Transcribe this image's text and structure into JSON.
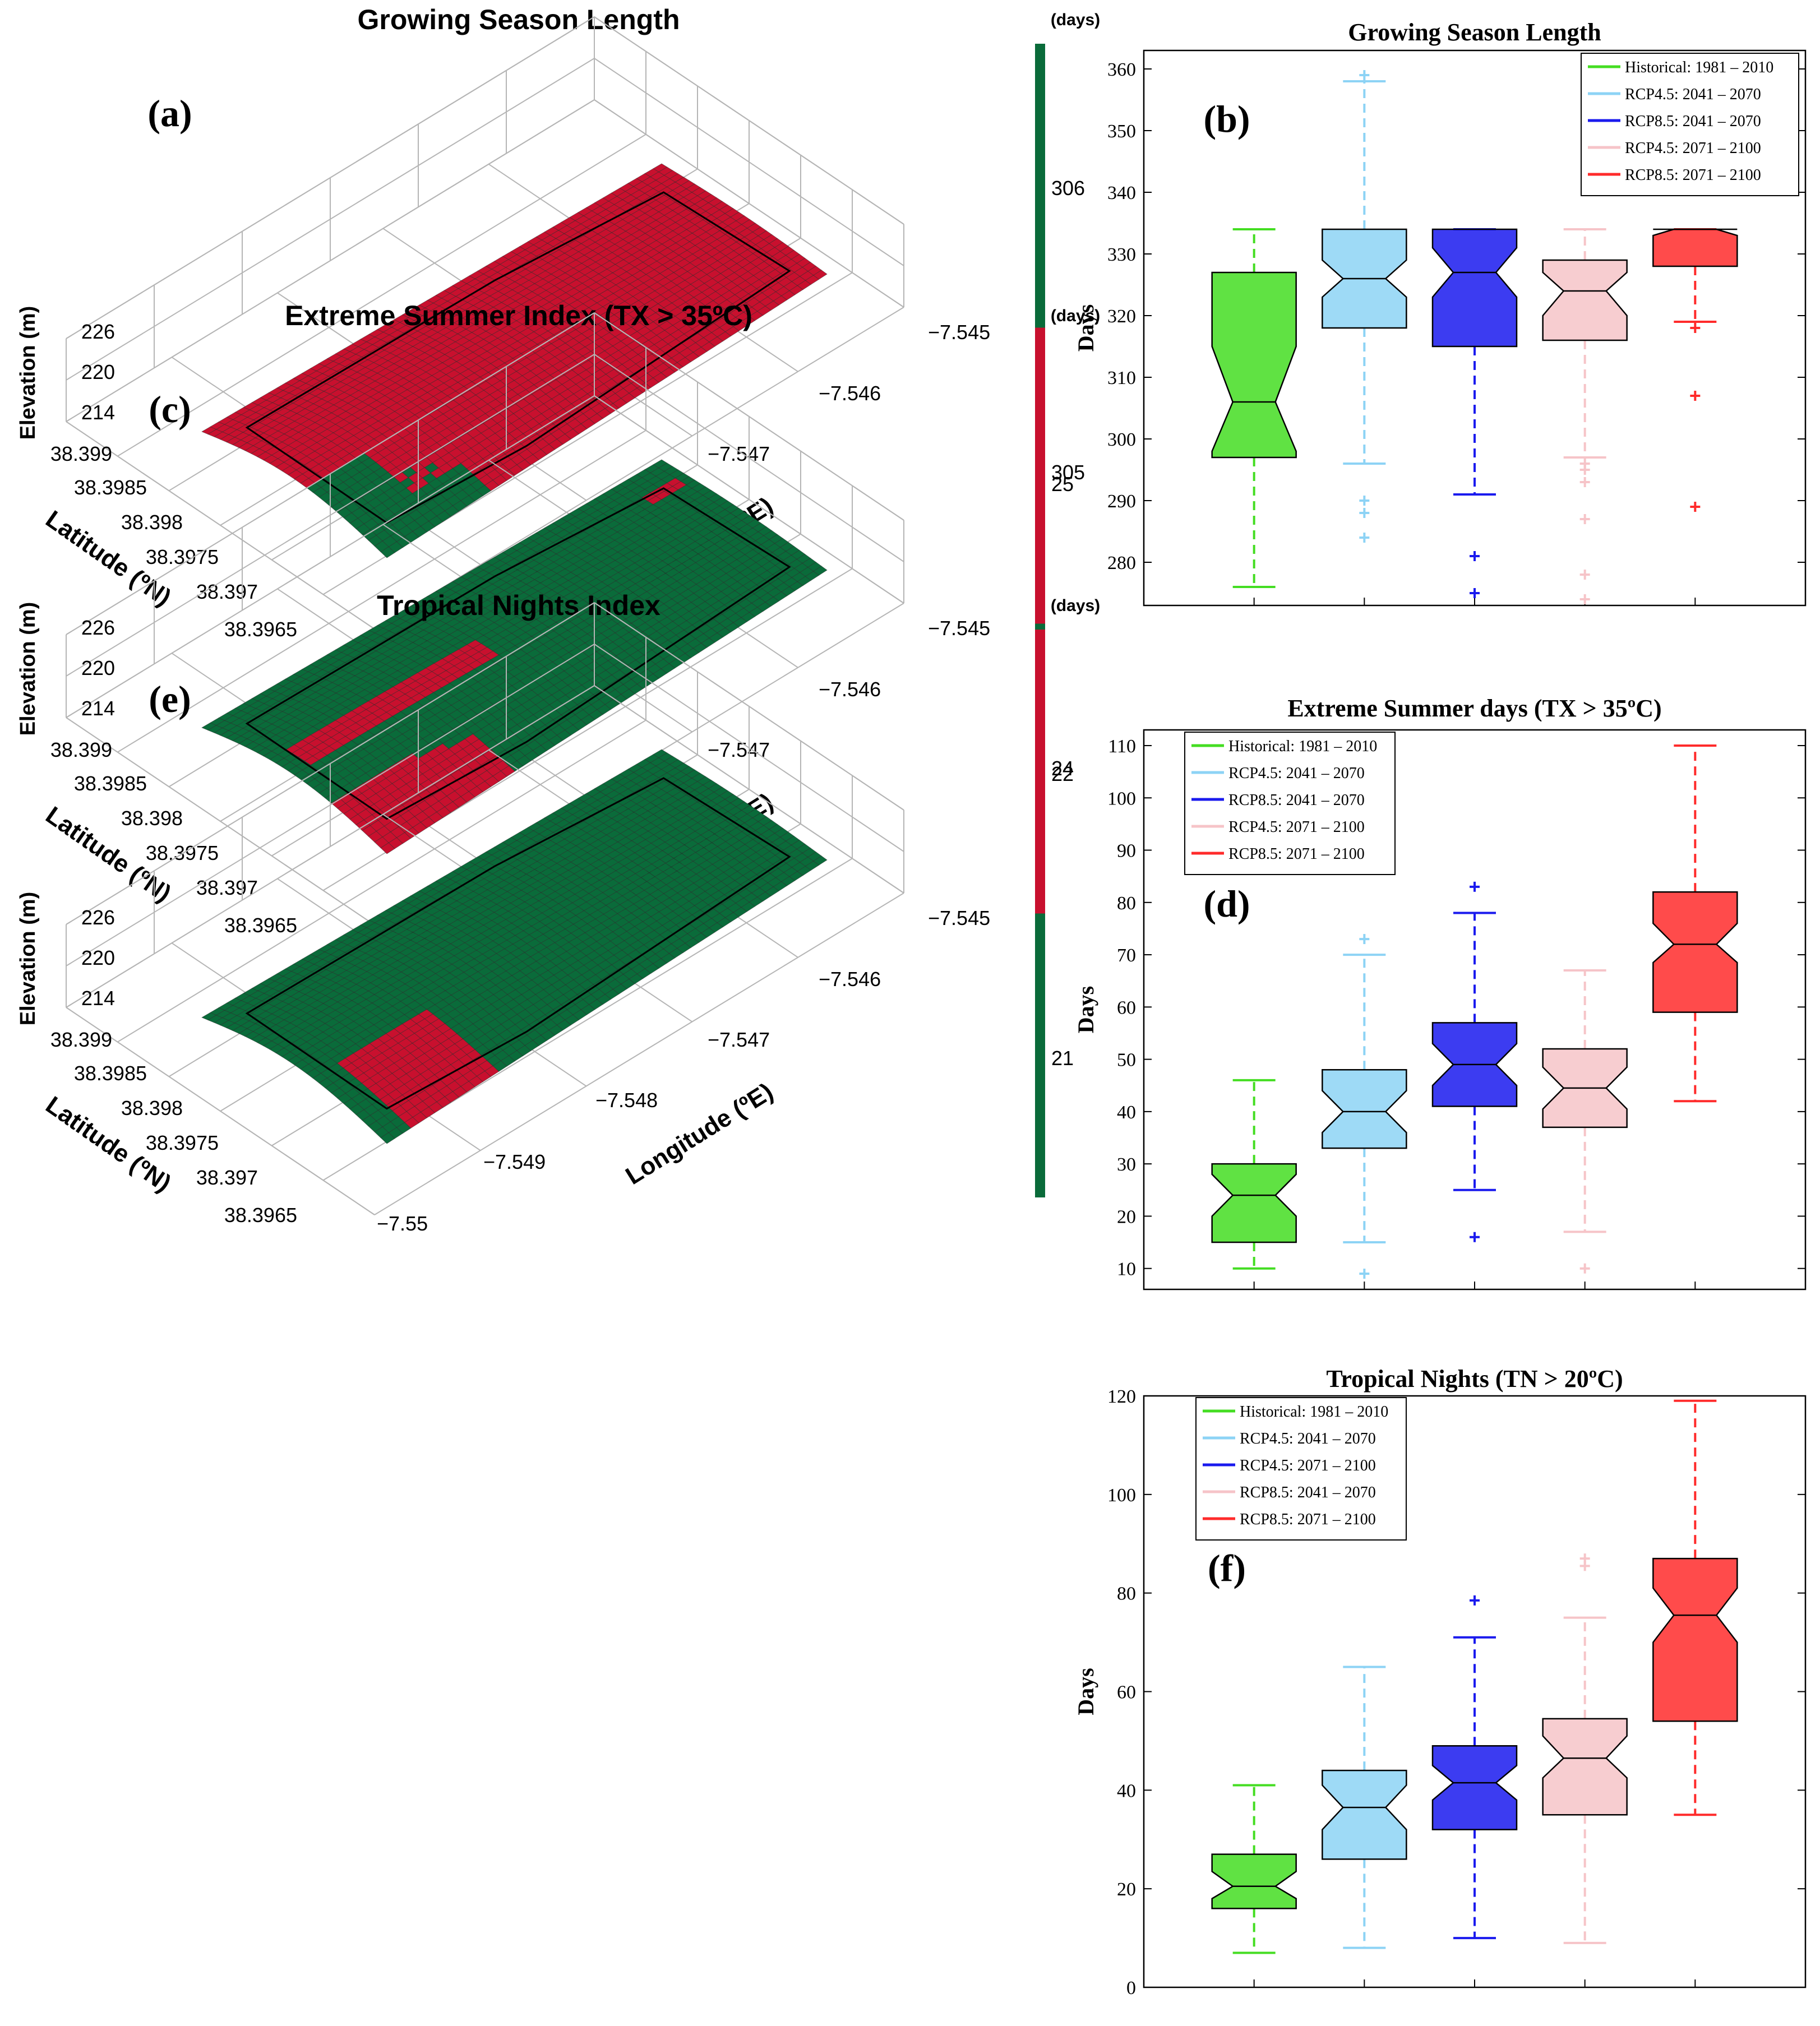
{
  "colors": {
    "surface_red": "#c8102e",
    "surface_green": "#0a6b3a",
    "grid": "#b5b5b5"
  },
  "chart_data": [
    {
      "id": "a",
      "panel_label": "(a)",
      "type": "surface3d",
      "title": "Growing Season Length",
      "unit_label": "(days)",
      "colorbar": {
        "top_label": "306",
        "bottom_label": "305",
        "top_color": "#0a6b3a",
        "bottom_color": "#c8102e"
      },
      "z_label": "Elevation (m)",
      "z_ticks": [
        "226",
        "220",
        "214"
      ],
      "lat_label": "Latitude (ºN)",
      "lat_ticks": [
        "38.399",
        "38.3985",
        "38.398",
        "38.3975",
        "38.397",
        "38.3965"
      ],
      "lon_label": "Longitude (ºE)",
      "lon_ticks": [
        "-7.545",
        "-7.546",
        "-7.547",
        "-7.548",
        "-7.549",
        "-7.55"
      ],
      "surface_color": "#c8102e",
      "patch_color": "#0a6b3a",
      "patch_pattern": "southwest corner cells (value 306); remainder 305"
    },
    {
      "id": "b",
      "panel_label": "(b)",
      "type": "boxplot",
      "title": "Growing Season Length",
      "ylabel": "Days",
      "ylim": [
        273,
        363
      ],
      "yticks": [
        280,
        290,
        300,
        310,
        320,
        330,
        340,
        350,
        360
      ],
      "legend_position": "top-right",
      "series": [
        {
          "name": "Historical: 1981 – 2010",
          "color": "#44dd22",
          "q1": 297,
          "median": 306,
          "q3": 327,
          "whisker_low": 276,
          "whisker_high": 334,
          "notch_low": 298,
          "notch_high": 315,
          "outliers": []
        },
        {
          "name": "RCP4.5: 2041 – 2070",
          "color": "#8dd3f5",
          "q1": 318,
          "median": 326,
          "q3": 334,
          "whisker_low": 296,
          "whisker_high": 358,
          "notch_low": 323,
          "notch_high": 329,
          "outliers": [
            290,
            288,
            284,
            359
          ]
        },
        {
          "name": "RCP8.5: 2041 – 2070",
          "color": "#1a1aee",
          "q1": 315,
          "median": 327,
          "q3": 334,
          "whisker_low": 291,
          "whisker_high": 334,
          "notch_low": 323,
          "notch_high": 331,
          "outliers": [
            281,
            275
          ]
        },
        {
          "name": "RCP4.5: 2071 – 2100",
          "color": "#f6c4c8",
          "q1": 316,
          "median": 324,
          "q3": 329,
          "whisker_low": 297,
          "whisker_high": 334,
          "notch_low": 320,
          "notch_high": 327,
          "outliers": [
            296,
            295,
            293,
            287,
            278,
            274
          ]
        },
        {
          "name": "RCP8.5: 2071 – 2100",
          "color": "#ff2b2b",
          "q1": 328,
          "median": 334,
          "q3": 334,
          "whisker_low": 319,
          "whisker_high": 334,
          "notch_low": 333,
          "notch_high": 335,
          "outliers": [
            318,
            307,
            289
          ]
        }
      ]
    },
    {
      "id": "c",
      "panel_label": "(c)",
      "type": "surface3d",
      "title": "Extreme Summer Index (TX > 35ºC)",
      "unit_label": "(days)",
      "colorbar": {
        "top_label": "25",
        "bottom_label": "24",
        "top_color": "#c8102e",
        "bottom_color": "#0a6b3a"
      },
      "z_label": "Elevation (m)",
      "z_ticks": [
        "226",
        "220",
        "214"
      ],
      "lat_label": "Latitude (ºN)",
      "lat_ticks": [
        "38.399",
        "38.3985",
        "38.398",
        "38.3975",
        "38.397",
        "38.3965"
      ],
      "lon_label": "Longitude (ºE)",
      "lon_ticks": [
        "-7.545",
        "-7.546",
        "-7.547",
        "-7.548",
        "-7.549",
        "-7.55"
      ],
      "surface_color": "#0a6b3a",
      "patch_color": "#c8102e",
      "patch_pattern": "southwest strip and corner cells (value 25); remainder 24"
    },
    {
      "id": "d",
      "panel_label": "(d)",
      "type": "boxplot",
      "title": "Extreme Summer days (TX > 35ºC)",
      "ylabel": "Days",
      "ylim": [
        6,
        113
      ],
      "yticks": [
        10,
        20,
        30,
        40,
        50,
        60,
        70,
        80,
        90,
        100,
        110
      ],
      "legend_position": "top-left",
      "series": [
        {
          "name": "Historical: 1981 – 2010",
          "color": "#44dd22",
          "q1": 15,
          "median": 24,
          "q3": 30,
          "whisker_low": 10,
          "whisker_high": 46,
          "notch_low": 20,
          "notch_high": 28,
          "outliers": []
        },
        {
          "name": "RCP4.5: 2041 – 2070",
          "color": "#8dd3f5",
          "q1": 33,
          "median": 40,
          "q3": 48,
          "whisker_low": 15,
          "whisker_high": 70,
          "notch_low": 36,
          "notch_high": 44,
          "outliers": [
            73,
            9
          ]
        },
        {
          "name": "RCP8.5: 2041 – 2070",
          "color": "#1a1aee",
          "q1": 41,
          "median": 49,
          "q3": 57,
          "whisker_low": 25,
          "whisker_high": 78,
          "notch_low": 45,
          "notch_high": 53,
          "outliers": [
            83,
            16
          ]
        },
        {
          "name": "RCP4.5: 2071 – 2100",
          "color": "#f6c4c8",
          "q1": 37,
          "median": 44.5,
          "q3": 52,
          "whisker_low": 17,
          "whisker_high": 67,
          "notch_low": 40.5,
          "notch_high": 48.5,
          "outliers": [
            10
          ]
        },
        {
          "name": "RCP8.5: 2071 – 2100",
          "color": "#ff2b2b",
          "q1": 59,
          "median": 72,
          "q3": 82,
          "whisker_low": 42,
          "whisker_high": 110,
          "notch_low": 68.5,
          "notch_high": 76,
          "outliers": []
        }
      ]
    },
    {
      "id": "e",
      "panel_label": "(e)",
      "type": "surface3d",
      "title": "Tropical Nights Index",
      "unit_label": "(days)",
      "colorbar": {
        "top_label": "22",
        "bottom_label": "21",
        "top_color": "#c8102e",
        "bottom_color": "#0a6b3a"
      },
      "z_label": "Elevation (m)",
      "z_ticks": [
        "226",
        "220",
        "214"
      ],
      "lat_label": "Latitude (ºN)",
      "lat_ticks": [
        "38.399",
        "38.3985",
        "38.398",
        "38.3975",
        "38.397",
        "38.3965"
      ],
      "lon_label": "Longitude (ºE)",
      "lon_ticks": [
        "-7.545",
        "-7.546",
        "-7.547",
        "-7.548",
        "-7.549",
        "-7.55"
      ],
      "surface_color": "#0a6b3a",
      "patch_color": "#c8102e",
      "patch_pattern": "southwest corner cells (value 22); remainder 21"
    },
    {
      "id": "f",
      "panel_label": "(f)",
      "type": "boxplot",
      "title": "Tropical Nights (TN > 20ºC)",
      "ylabel": "Days",
      "ylim": [
        0,
        120
      ],
      "yticks": [
        0,
        20,
        40,
        60,
        80,
        100,
        120
      ],
      "legend_position": "top-left",
      "series": [
        {
          "name": "Historical: 1981 – 2010",
          "color": "#44dd22",
          "q1": 16,
          "median": 20.5,
          "q3": 27,
          "whisker_low": 7,
          "whisker_high": 41,
          "notch_low": 18,
          "notch_high": 23.5,
          "outliers": []
        },
        {
          "name": "RCP4.5: 2041 – 2070",
          "color": "#8dd3f5",
          "q1": 26,
          "median": 36.5,
          "q3": 44,
          "whisker_low": 8,
          "whisker_high": 65,
          "notch_low": 32,
          "notch_high": 41,
          "outliers": []
        },
        {
          "name": "RCP4.5: 2071 – 2100",
          "color": "#1a1aee",
          "q1": 32,
          "median": 41.5,
          "q3": 49,
          "whisker_low": 10,
          "whisker_high": 71,
          "notch_low": 38,
          "notch_high": 45,
          "outliers": [
            78.5
          ]
        },
        {
          "name": "RCP8.5: 2041 – 2070",
          "color": "#f6c4c8",
          "q1": 35,
          "median": 46.5,
          "q3": 54.5,
          "whisker_low": 9,
          "whisker_high": 75,
          "notch_low": 42.5,
          "notch_high": 51,
          "outliers": [
            85.5,
            87
          ]
        },
        {
          "name": "RCP8.5: 2071 – 2100",
          "color": "#ff2b2b",
          "q1": 54,
          "median": 75.5,
          "q3": 87,
          "whisker_low": 35,
          "whisker_high": 119,
          "notch_low": 70,
          "notch_high": 81,
          "outliers": []
        }
      ]
    }
  ]
}
